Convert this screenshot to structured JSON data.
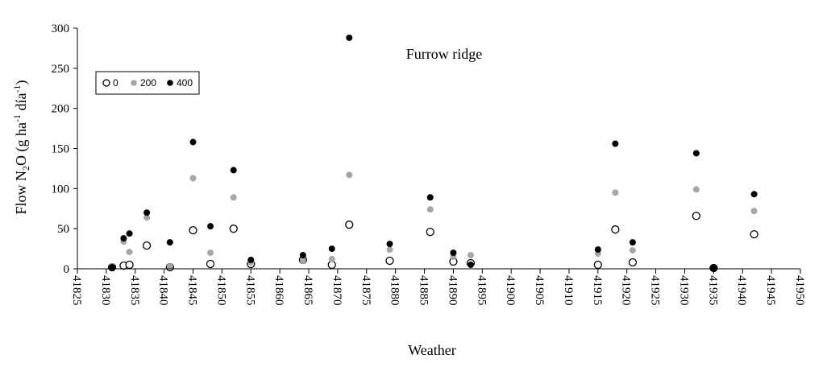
{
  "chart_data": {
    "type": "scatter",
    "title": "Furrow ridge",
    "xlabel": "Weather",
    "ylabel_parts": [
      "Flow N",
      "2",
      "O (g ha",
      "-1",
      " día",
      "-1",
      ")"
    ],
    "xlim": [
      41825,
      41950
    ],
    "ylim": [
      0,
      300
    ],
    "x_ticks": [
      41825,
      41830,
      41835,
      41840,
      41845,
      41850,
      41855,
      41860,
      41865,
      41870,
      41875,
      41880,
      41885,
      41890,
      41895,
      41900,
      41905,
      41910,
      41915,
      41920,
      41925,
      41930,
      41935,
      41940,
      41945,
      41950
    ],
    "y_ticks": [
      0,
      50,
      100,
      150,
      200,
      250,
      300
    ],
    "grid": false,
    "legend_position": "top-left",
    "series": [
      {
        "name": "0",
        "style": "hollow",
        "color": "#000000",
        "points": [
          [
            41831,
            2
          ],
          [
            41833,
            4
          ],
          [
            41834,
            5
          ],
          [
            41837,
            29
          ],
          [
            41841,
            2
          ],
          [
            41845,
            48
          ],
          [
            41848,
            6
          ],
          [
            41852,
            50
          ],
          [
            41855,
            6
          ],
          [
            41864,
            11
          ],
          [
            41869,
            5
          ],
          [
            41872,
            55
          ],
          [
            41879,
            10
          ],
          [
            41886,
            46
          ],
          [
            41890,
            9
          ],
          [
            41893,
            7
          ],
          [
            41915,
            5
          ],
          [
            41918,
            49
          ],
          [
            41921,
            8
          ],
          [
            41932,
            66
          ],
          [
            41935,
            1
          ],
          [
            41942,
            43
          ]
        ]
      },
      {
        "name": "200",
        "style": "filled",
        "color": "#a6a6a6",
        "points": [
          [
            41831,
            3
          ],
          [
            41833,
            34
          ],
          [
            41834,
            21
          ],
          [
            41837,
            64
          ],
          [
            41841,
            3
          ],
          [
            41845,
            113
          ],
          [
            41848,
            20
          ],
          [
            41852,
            89
          ],
          [
            41855,
            8
          ],
          [
            41864,
            10
          ],
          [
            41869,
            12
          ],
          [
            41872,
            117
          ],
          [
            41879,
            24
          ],
          [
            41886,
            74
          ],
          [
            41890,
            15
          ],
          [
            41893,
            17
          ],
          [
            41915,
            19
          ],
          [
            41918,
            95
          ],
          [
            41921,
            23
          ],
          [
            41932,
            99
          ],
          [
            41935,
            1
          ],
          [
            41942,
            72
          ]
        ]
      },
      {
        "name": "400",
        "style": "filled",
        "color": "#000000",
        "points": [
          [
            41831,
            2
          ],
          [
            41833,
            38
          ],
          [
            41834,
            44
          ],
          [
            41837,
            70
          ],
          [
            41841,
            33
          ],
          [
            41845,
            158
          ],
          [
            41848,
            53
          ],
          [
            41852,
            123
          ],
          [
            41855,
            11
          ],
          [
            41864,
            17
          ],
          [
            41869,
            25
          ],
          [
            41872,
            288
          ],
          [
            41879,
            31
          ],
          [
            41886,
            89
          ],
          [
            41890,
            20
          ],
          [
            41893,
            5
          ],
          [
            41915,
            24
          ],
          [
            41918,
            156
          ],
          [
            41921,
            33
          ],
          [
            41932,
            144
          ],
          [
            41935,
            1
          ],
          [
            41942,
            93
          ]
        ]
      }
    ]
  }
}
